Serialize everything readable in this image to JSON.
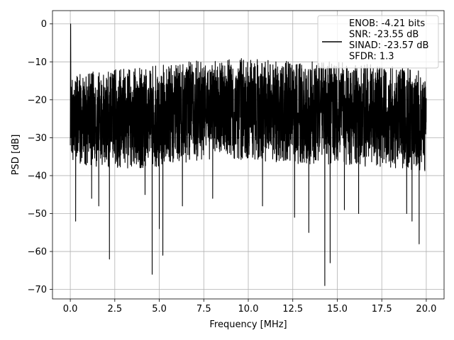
{
  "chart_data": {
    "type": "line",
    "title": "",
    "xlabel": "Frequency [MHz]",
    "ylabel": "PSD [dB]",
    "xlim": [
      -1.0,
      21.0
    ],
    "ylim": [
      -72.5,
      3.5
    ],
    "xticks": [
      0.0,
      2.5,
      5.0,
      7.5,
      10.0,
      12.5,
      15.0,
      17.5,
      20.0
    ],
    "xtick_labels": [
      "0.0",
      "2.5",
      "5.0",
      "7.5",
      "10.0",
      "12.5",
      "15.0",
      "17.5",
      "20.0"
    ],
    "yticks": [
      0,
      -10,
      -20,
      -30,
      -40,
      -50,
      -60,
      -70
    ],
    "ytick_labels": [
      "0",
      "−10",
      "−20",
      "−30",
      "−40",
      "−50",
      "−60",
      "−70"
    ],
    "grid": true,
    "legend_position": "top-right",
    "line_color": "#000000",
    "series": [
      {
        "legend_lines": [
          "ENOB: -4.21 bits",
          "SNR: -23.55 dB",
          "SINAD: -23.57 dB",
          "SFDR: 1.3"
        ],
        "peak": {
          "x": 0.02,
          "y": 0.0
        },
        "upper_envelope": [
          [
            0.0,
            -13
          ],
          [
            2.5,
            -12
          ],
          [
            5.0,
            -11
          ],
          [
            7.5,
            -9.5
          ],
          [
            10.0,
            -9
          ],
          [
            12.5,
            -10
          ],
          [
            15.0,
            -10
          ],
          [
            17.5,
            -11
          ],
          [
            20.0,
            -12
          ]
        ],
        "lower_envelope": [
          [
            0.0,
            -37
          ],
          [
            2.5,
            -38
          ],
          [
            5.0,
            -38
          ],
          [
            7.5,
            -36
          ],
          [
            10.0,
            -36
          ],
          [
            12.5,
            -37
          ],
          [
            15.0,
            -37
          ],
          [
            17.5,
            -38
          ],
          [
            20.0,
            -39
          ]
        ],
        "dips": [
          {
            "x": 0.3,
            "y": -52
          },
          {
            "x": 1.2,
            "y": -46
          },
          {
            "x": 1.6,
            "y": -48
          },
          {
            "x": 2.2,
            "y": -62
          },
          {
            "x": 4.2,
            "y": -45
          },
          {
            "x": 4.6,
            "y": -66
          },
          {
            "x": 5.0,
            "y": -54
          },
          {
            "x": 5.2,
            "y": -61
          },
          {
            "x": 6.3,
            "y": -48
          },
          {
            "x": 8.0,
            "y": -46
          },
          {
            "x": 10.8,
            "y": -48
          },
          {
            "x": 12.6,
            "y": -51
          },
          {
            "x": 13.4,
            "y": -55
          },
          {
            "x": 14.3,
            "y": -69
          },
          {
            "x": 14.6,
            "y": -63
          },
          {
            "x": 15.4,
            "y": -49
          },
          {
            "x": 16.2,
            "y": -50
          },
          {
            "x": 18.9,
            "y": -50
          },
          {
            "x": 19.2,
            "y": -52
          },
          {
            "x": 19.6,
            "y": -58
          }
        ]
      }
    ]
  }
}
